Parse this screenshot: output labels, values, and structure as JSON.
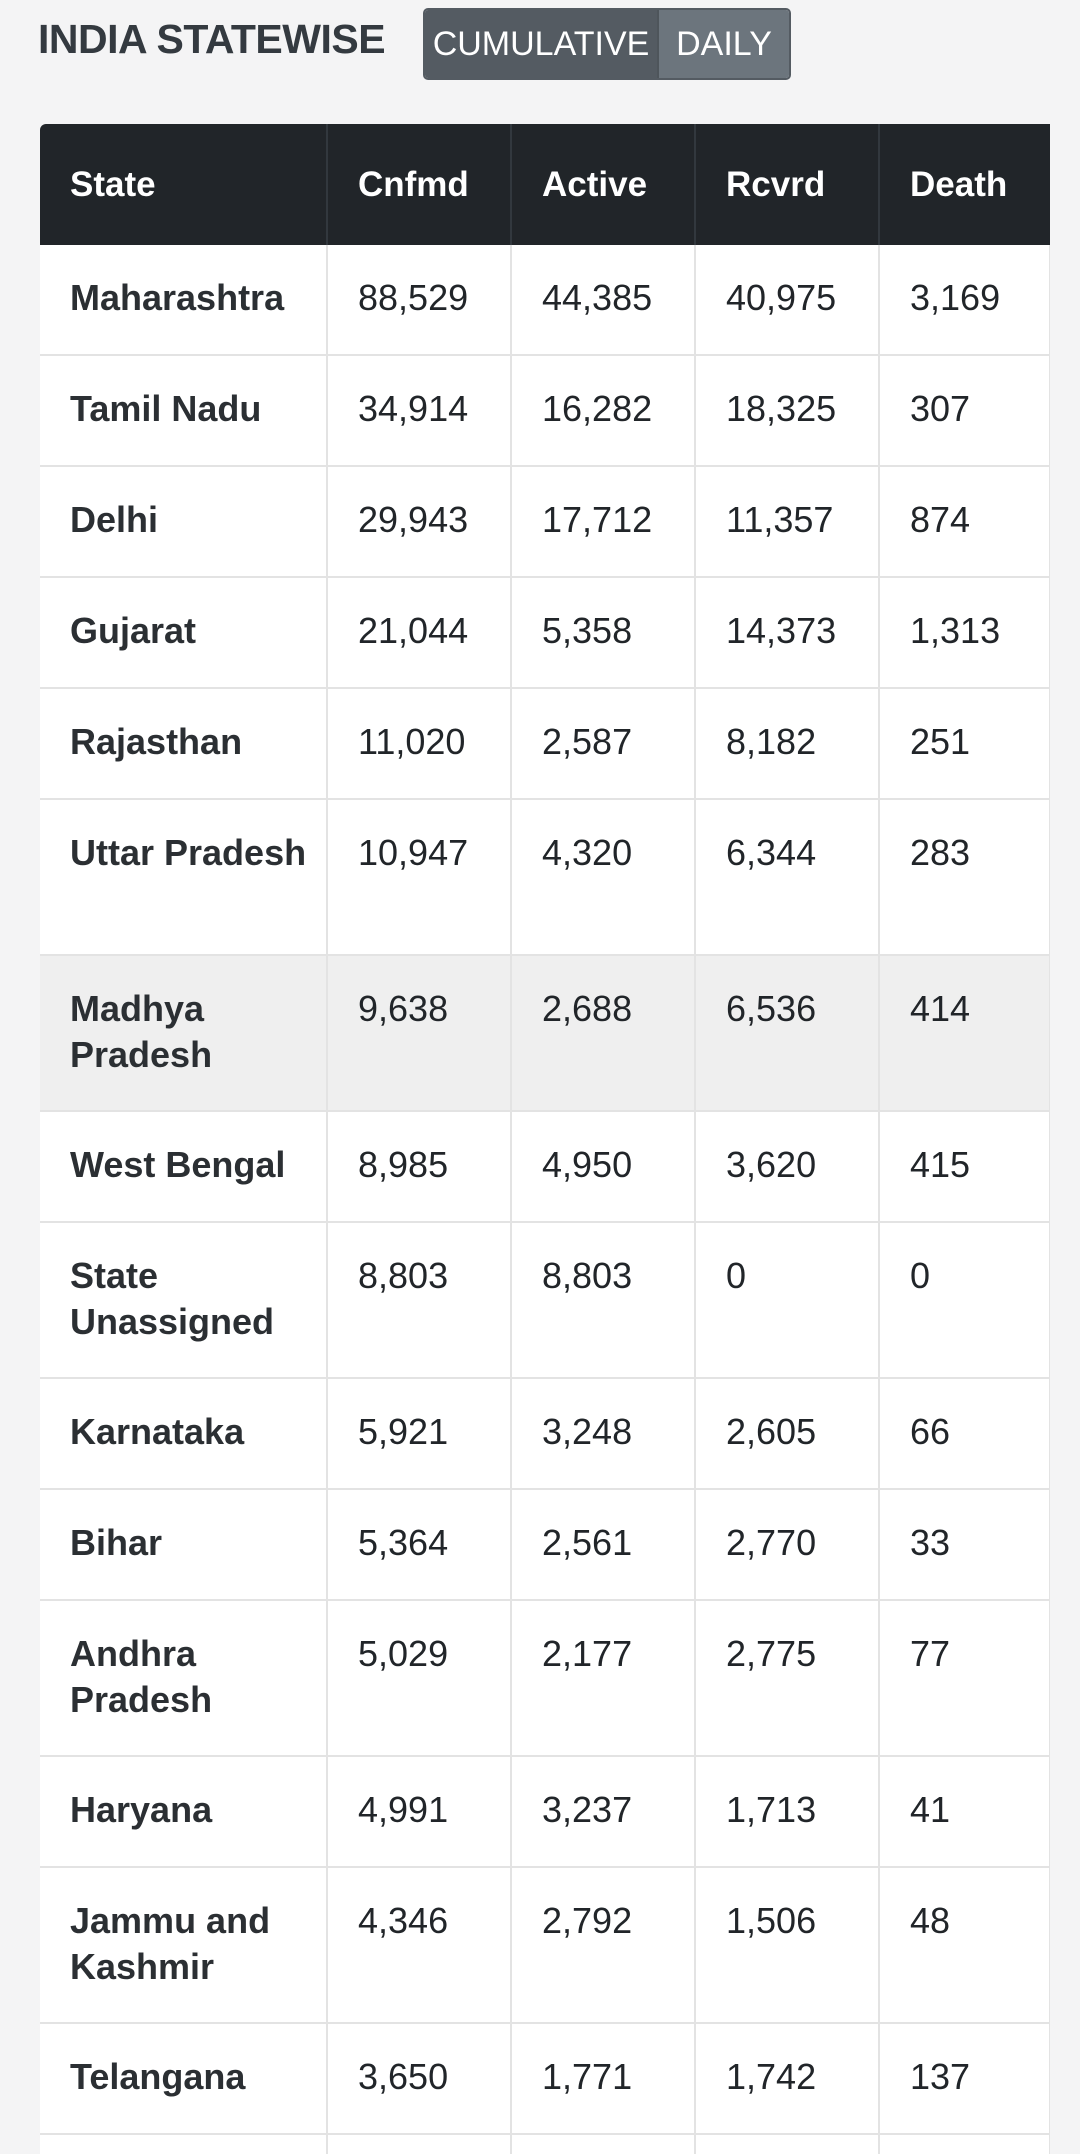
{
  "header": {
    "title": "INDIA STATEWISE",
    "toggle": {
      "cumulative_label": "CUMULATIVE",
      "daily_label": "DAILY",
      "selected": "CUMULATIVE"
    }
  },
  "table": {
    "columns": [
      "State",
      "Cnfmd",
      "Active",
      "Rcvrd",
      "Death"
    ],
    "rows": [
      {
        "state": "Maharashtra",
        "confirmed": "88,529",
        "active": "44,385",
        "recovered": "40,975",
        "deaths": "3,169"
      },
      {
        "state": "Tamil Nadu",
        "confirmed": "34,914",
        "active": "16,282",
        "recovered": "18,325",
        "deaths": "307"
      },
      {
        "state": "Delhi",
        "confirmed": "29,943",
        "active": "17,712",
        "recovered": "11,357",
        "deaths": "874"
      },
      {
        "state": "Gujarat",
        "confirmed": "21,044",
        "active": "5,358",
        "recovered": "14,373",
        "deaths": "1,313"
      },
      {
        "state": "Rajasthan",
        "confirmed": "11,020",
        "active": "2,587",
        "recovered": "8,182",
        "deaths": "251"
      },
      {
        "state": "Uttar Pradesh",
        "confirmed": "10,947",
        "active": "4,320",
        "recovered": "6,344",
        "deaths": "283"
      },
      {
        "state": "Madhya Pradesh",
        "confirmed": "9,638",
        "active": "2,688",
        "recovered": "6,536",
        "deaths": "414"
      },
      {
        "state": "West Bengal",
        "confirmed": "8,985",
        "active": "4,950",
        "recovered": "3,620",
        "deaths": "415"
      },
      {
        "state": "State Unassigned",
        "confirmed": "8,803",
        "active": "8,803",
        "recovered": "0",
        "deaths": "0"
      },
      {
        "state": "Karnataka",
        "confirmed": "5,921",
        "active": "3,248",
        "recovered": "2,605",
        "deaths": "66"
      },
      {
        "state": "Bihar",
        "confirmed": "5,364",
        "active": "2,561",
        "recovered": "2,770",
        "deaths": "33"
      },
      {
        "state": "Andhra Pradesh",
        "confirmed": "5,029",
        "active": "2,177",
        "recovered": "2,775",
        "deaths": "77"
      },
      {
        "state": "Haryana",
        "confirmed": "4,991",
        "active": "3,237",
        "recovered": "1,713",
        "deaths": "41"
      },
      {
        "state": "Jammu and Kashmir",
        "confirmed": "4,346",
        "active": "2,792",
        "recovered": "1,506",
        "deaths": "48"
      },
      {
        "state": "Telangana",
        "confirmed": "3,650",
        "active": "1,771",
        "recovered": "1,742",
        "deaths": "137"
      }
    ],
    "highlighted_row": "Madhya Pradesh"
  },
  "colors": {
    "header_bg": "#212529",
    "toggle_active": "#545b62",
    "toggle_inactive": "#6c757d",
    "highlight_row": "#efefef"
  }
}
